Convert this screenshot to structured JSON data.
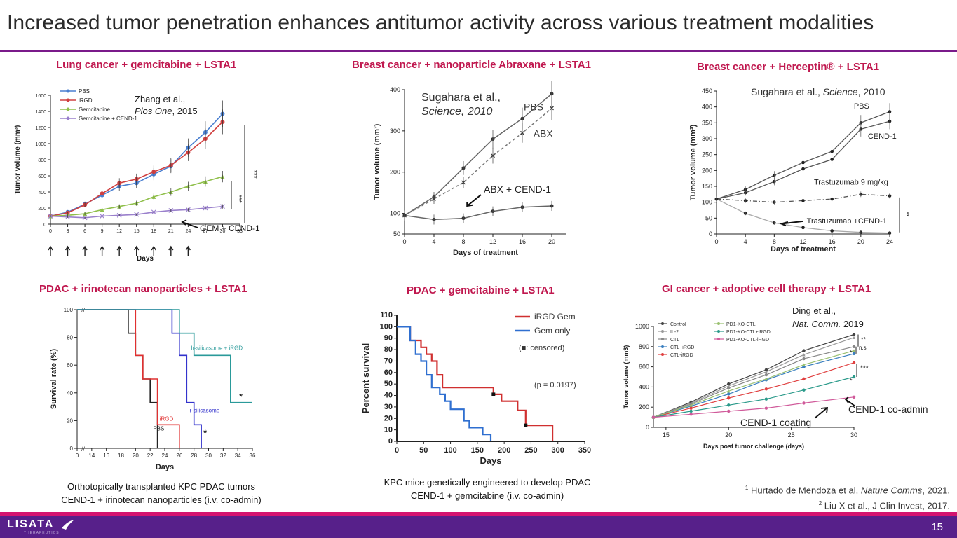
{
  "slide": {
    "title": "Increased tumor penetration enhances antitumor activity across various treatment modalities",
    "page_number": "15",
    "logo_text": "LISATA",
    "logo_subtext": "THERAPEUTICS",
    "accent_color": "#c0184f",
    "rule_color": "#7a1a8a",
    "footer_color": "#57208a",
    "footer_stripe_color": "#d4136f"
  },
  "panels": [
    {
      "title": "Lung cancer + gemcitabine + LSTA1"
    },
    {
      "title": "Breast cancer + nanoparticle Abraxane + LSTA1"
    },
    {
      "title": "Breast cancer + Herceptin® + LSTA1"
    },
    {
      "title": "PDAC + irinotecan nanoparticles + LSTA1",
      "caption": [
        "Orthotopically transplanted KPC PDAC tumors",
        "CEND-1 + irinotecan nanoparticles (i.v. co-admin)"
      ]
    },
    {
      "title": "PDAC + gemcitabine + LSTA1",
      "caption": [
        "KPC mice genetically engineered to develop PDAC",
        "CEND-1 + gemcitabine (i.v. co-admin)"
      ]
    },
    {
      "title": "GI cancer + adoptive cell therapy + LSTA1"
    }
  ],
  "references": [
    {
      "sup": "1",
      "pre": "Hurtado de Mendoza et al, ",
      "journal": "Nature Comms",
      "post": ", 2021."
    },
    {
      "sup": "2",
      "pre": "Liu X et al., J Clin Invest, 2017.",
      "journal": "",
      "post": ""
    }
  ],
  "chart_data": [
    {
      "type": "line",
      "xlabel": "Days",
      "ylabel": "Tumor volume (mm³)",
      "xlim": [
        0,
        33
      ],
      "ylim": [
        0,
        1600
      ],
      "xticks": [
        0,
        3,
        6,
        9,
        12,
        15,
        18,
        21,
        24,
        27,
        30,
        33
      ],
      "yticks": [
        0,
        200,
        400,
        600,
        800,
        1000,
        1200,
        1400,
        1600
      ],
      "x": [
        0,
        3,
        6,
        9,
        12,
        15,
        18,
        21,
        24,
        27,
        30
      ],
      "series": [
        {
          "name": "PBS",
          "color": "#4a7fd0",
          "values": [
            100,
            150,
            250,
            360,
            470,
            510,
            620,
            720,
            950,
            1140,
            1370
          ]
        },
        {
          "name": "iRGD",
          "color": "#d04040",
          "values": [
            100,
            140,
            240,
            380,
            510,
            560,
            650,
            730,
            890,
            1060,
            1270
          ]
        },
        {
          "name": "Gemcitabine",
          "color": "#8fbf4a",
          "values": [
            100,
            110,
            130,
            180,
            220,
            260,
            340,
            400,
            470,
            530,
            590
          ]
        },
        {
          "name": "Gemcitabine + CEND-1",
          "color": "#9a80cc",
          "values": [
            100,
            90,
            80,
            100,
            110,
            120,
            150,
            170,
            180,
            200,
            220
          ]
        }
      ],
      "annotations": {
        "citation_1": "Zhang et al.,",
        "citation_2": "Plos One",
        "citation_3": ", 2015",
        "label": "GEM + CEND-1",
        "sig1": "***",
        "sig2": "***"
      }
    },
    {
      "type": "line",
      "xlabel": "Days of treatment",
      "ylabel": "Tumor volume (mm³)",
      "xlim": [
        0,
        22
      ],
      "ylim": [
        50,
        400
      ],
      "xticks": [
        0,
        4,
        8,
        12,
        16,
        20
      ],
      "yticks": [
        50,
        100,
        200,
        300,
        400
      ],
      "x": [
        0,
        4,
        8,
        12,
        16,
        20
      ],
      "series": [
        {
          "name": "PBS",
          "values": [
            95,
            140,
            210,
            280,
            330,
            390
          ]
        },
        {
          "name": "ABX",
          "values": [
            95,
            135,
            175,
            240,
            295,
            355
          ]
        },
        {
          "name": "ABX + CEND-1",
          "values": [
            95,
            85,
            88,
            105,
            115,
            118
          ]
        }
      ],
      "annotations": {
        "citation_1": "Sugahara et al.,",
        "citation_2": "Science, 2010"
      }
    },
    {
      "type": "line",
      "xlabel": "Days of treatment",
      "ylabel": "Tumor volume (mm³)",
      "xlim": [
        0,
        24
      ],
      "ylim": [
        0,
        450
      ],
      "xticks": [
        0,
        4,
        8,
        12,
        16,
        20,
        24
      ],
      "yticks": [
        0,
        50,
        100,
        150,
        200,
        250,
        300,
        350,
        400,
        450
      ],
      "x": [
        0,
        4,
        8,
        12,
        16,
        20,
        24
      ],
      "series": [
        {
          "name": "PBS",
          "values": [
            110,
            140,
            185,
            225,
            260,
            350,
            385
          ]
        },
        {
          "name": "CEND-1",
          "values": [
            110,
            130,
            165,
            205,
            235,
            330,
            355
          ]
        },
        {
          "name": "Trastuzumab 9 mg/kg",
          "values": [
            110,
            105,
            100,
            105,
            110,
            125,
            120
          ]
        },
        {
          "name": "Trastuzumab +CEND-1",
          "values": [
            110,
            65,
            35,
            20,
            10,
            5,
            3
          ]
        }
      ],
      "annotations": {
        "citation_1": "Sugahara et al., ",
        "citation_2": "Science",
        "citation_3": ", 2010",
        "sig": "**"
      }
    },
    {
      "type": "line",
      "xlabel": "Days",
      "ylabel": "Survival rate (%)",
      "xlim": [
        0,
        36
      ],
      "ylim": [
        0,
        100
      ],
      "xticks": [
        0,
        14,
        16,
        18,
        20,
        22,
        24,
        26,
        28,
        30,
        32,
        34,
        36
      ],
      "yticks": [
        0,
        20,
        40,
        60,
        80,
        100
      ],
      "series": [
        {
          "name": "PBS",
          "color": "#222222",
          "points": [
            [
              0,
              100
            ],
            [
              19,
              100
            ],
            [
              19,
              83
            ],
            [
              20,
              83
            ],
            [
              20,
              67
            ],
            [
              21,
              67
            ],
            [
              21,
              50
            ],
            [
              22,
              50
            ],
            [
              22,
              33
            ],
            [
              23,
              33
            ],
            [
              23,
              0
            ]
          ]
        },
        {
          "name": "iRGD",
          "color": "#e03030",
          "points": [
            [
              0,
              100
            ],
            [
              20,
              100
            ],
            [
              20,
              67
            ],
            [
              21,
              67
            ],
            [
              21,
              50
            ],
            [
              23,
              50
            ],
            [
              23,
              17
            ],
            [
              26,
              17
            ],
            [
              26,
              0
            ]
          ]
        },
        {
          "name": "Ir-silicasome",
          "color": "#3333cc",
          "points": [
            [
              0,
              100
            ],
            [
              25,
              100
            ],
            [
              25,
              83
            ],
            [
              26,
              83
            ],
            [
              26,
              67
            ],
            [
              27,
              67
            ],
            [
              27,
              33
            ],
            [
              28,
              33
            ],
            [
              28,
              17
            ],
            [
              29,
              17
            ],
            [
              29,
              0
            ]
          ]
        },
        {
          "name": "Ir-silicasome + iRGD",
          "color": "#2a9a9a",
          "points": [
            [
              0,
              100
            ],
            [
              26,
              100
            ],
            [
              26,
              83
            ],
            [
              28,
              83
            ],
            [
              28,
              67
            ],
            [
              33,
              67
            ],
            [
              33,
              33
            ],
            [
              36,
              33
            ]
          ]
        }
      ],
      "annotations": {
        "star": "*",
        "hash": "//"
      }
    },
    {
      "type": "line",
      "xlabel": "Days",
      "ylabel": "Percent survival",
      "xlim": [
        0,
        350
      ],
      "ylim": [
        0,
        110
      ],
      "xticks": [
        0,
        50,
        100,
        150,
        200,
        250,
        300,
        350
      ],
      "yticks": [
        0,
        10,
        20,
        30,
        40,
        50,
        60,
        70,
        80,
        90,
        100,
        110
      ],
      "series": [
        {
          "name": "iRGD  Gem",
          "color": "#d03030",
          "points": [
            [
              0,
              100
            ],
            [
              25,
              100
            ],
            [
              25,
              88
            ],
            [
              45,
              88
            ],
            [
              45,
              82
            ],
            [
              55,
              82
            ],
            [
              55,
              76
            ],
            [
              65,
              76
            ],
            [
              65,
              70
            ],
            [
              75,
              70
            ],
            [
              75,
              58
            ],
            [
              85,
              58
            ],
            [
              85,
              47
            ],
            [
              180,
              47
            ],
            [
              180,
              41
            ],
            [
              195,
              41
            ],
            [
              195,
              35
            ],
            [
              225,
              35
            ],
            [
              225,
              27
            ],
            [
              240,
              27
            ],
            [
              240,
              14
            ],
            [
              290,
              14
            ],
            [
              290,
              0
            ]
          ]
        },
        {
          "name": "Gem only",
          "color": "#2f6fd0",
          "points": [
            [
              0,
              100
            ],
            [
              25,
              100
            ],
            [
              25,
              88
            ],
            [
              35,
              88
            ],
            [
              35,
              76
            ],
            [
              45,
              76
            ],
            [
              45,
              70
            ],
            [
              55,
              70
            ],
            [
              55,
              58
            ],
            [
              65,
              58
            ],
            [
              65,
              47
            ],
            [
              80,
              47
            ],
            [
              80,
              41
            ],
            [
              90,
              41
            ],
            [
              90,
              35
            ],
            [
              100,
              35
            ],
            [
              100,
              28
            ],
            [
              125,
              28
            ],
            [
              125,
              18
            ],
            [
              135,
              18
            ],
            [
              135,
              12
            ],
            [
              160,
              12
            ],
            [
              160,
              6
            ],
            [
              175,
              6
            ],
            [
              175,
              0
            ]
          ]
        }
      ],
      "annotations": {
        "censored": "(■: censored)",
        "pvalue": "(p = 0.0197)"
      }
    },
    {
      "type": "line",
      "xlabel": "Days post tumor challenge (days)",
      "ylabel": "Tumor volume (mm3)",
      "xlim": [
        14,
        30
      ],
      "ylim": [
        0,
        1000
      ],
      "xticks": [
        15,
        20,
        25,
        30
      ],
      "yticks": [
        0,
        200,
        400,
        600,
        800,
        1000
      ],
      "x": [
        14,
        17,
        20,
        23,
        26,
        30
      ],
      "series": [
        {
          "name": "Control",
          "color": "#444444",
          "values": [
            100,
            250,
            430,
            570,
            760,
            920
          ]
        },
        {
          "name": "IL-2",
          "color": "#999999",
          "values": [
            100,
            240,
            410,
            550,
            720,
            890
          ]
        },
        {
          "name": "CTL",
          "color": "#888888",
          "values": [
            100,
            230,
            390,
            520,
            680,
            800
          ]
        },
        {
          "name": "CTL+iRGD",
          "color": "#3a7fbf",
          "values": [
            100,
            210,
            330,
            470,
            600,
            730
          ]
        },
        {
          "name": "CTL-iRGD",
          "color": "#e04040",
          "values": [
            100,
            190,
            290,
            380,
            480,
            640
          ]
        },
        {
          "name": "PD1-KO-CTL",
          "color": "#9ac070",
          "values": [
            100,
            220,
            360,
            480,
            620,
            760
          ]
        },
        {
          "name": "PD1-KO-CTL+iRGD",
          "color": "#2a9a8a",
          "values": [
            100,
            160,
            220,
            280,
            370,
            500
          ]
        },
        {
          "name": "PD1-KO-CTL-iRGD",
          "color": "#d05a9a",
          "values": [
            100,
            130,
            160,
            190,
            240,
            300
          ]
        }
      ],
      "annotations": {
        "citation_1": "Ding et al.,",
        "citation_2": "Nat. Comm.",
        "citation_3": " 2019",
        "coating": "CEND-1 coating",
        "coadmin": "CEND-1 co-admin",
        "sig1": "**",
        "sig2": "n.s",
        "sig3": "*",
        "sig4": "***",
        "sig5": "*"
      }
    }
  ]
}
